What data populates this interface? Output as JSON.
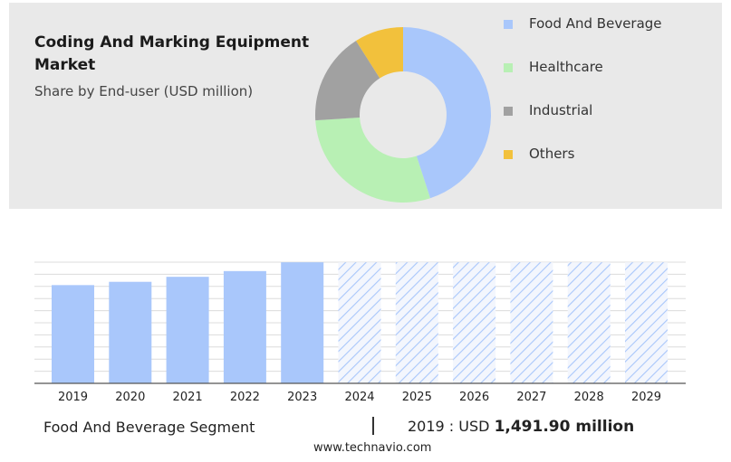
{
  "header": {
    "title": "Coding And Marking Equipment Market",
    "subtitle": "Share by End-user (USD million)"
  },
  "chart_data": [
    {
      "type": "pie",
      "donut": true,
      "slices": [
        {
          "label": "Food And Beverage",
          "value": 45,
          "color": "#a9c7fb"
        },
        {
          "label": "Healthcare",
          "value": 29,
          "color": "#b8f0b4"
        },
        {
          "label": "Industrial",
          "value": 17,
          "color": "#a1a1a1"
        },
        {
          "label": "Others",
          "value": 9,
          "color": "#f2c13c"
        }
      ],
      "legend_placement": "right"
    },
    {
      "type": "bar",
      "categories": [
        "2019",
        "2020",
        "2021",
        "2022",
        "2023",
        "2024",
        "2025",
        "2026",
        "2027",
        "2028",
        "2029"
      ],
      "values": [
        1491.9,
        1542,
        1618,
        1705,
        1838,
        1838,
        1838,
        1838,
        1838,
        1838,
        1838
      ],
      "forecast_from": "2024",
      "ylim": [
        0,
        1840
      ],
      "bar_color": "#a9c7fb",
      "grid": true
    }
  ],
  "footer": {
    "segment_label": "Food And Beverage Segment",
    "year_text": "2019 : USD ",
    "value_text": "1,491.90 million"
  },
  "source": "www.technavio.com"
}
